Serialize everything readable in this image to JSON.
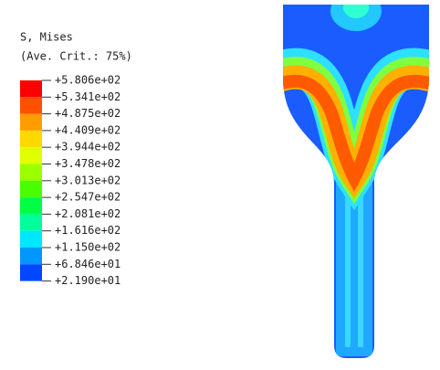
{
  "legend": {
    "title": "S, Mises",
    "subtitle": "(Ave. Crit.: 75%)",
    "levels": [
      "+5.806e+02",
      "+5.341e+02",
      "+4.875e+02",
      "+4.409e+02",
      "+3.944e+02",
      "+3.478e+02",
      "+3.013e+02",
      "+2.547e+02",
      "+2.081e+02",
      "+1.616e+02",
      "+1.150e+02",
      "+6.846e+01",
      "+2.190e+01"
    ]
  }
}
